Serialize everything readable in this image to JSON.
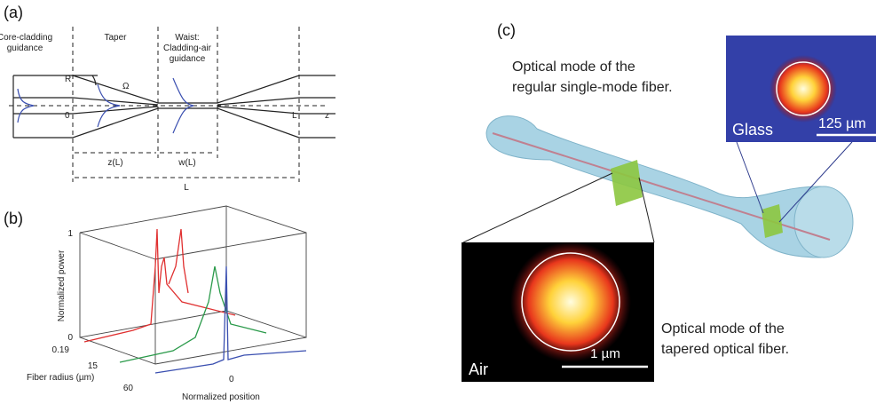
{
  "panel_a": {
    "label": "(a)",
    "core_region": [
      "Core-cladding",
      "guidance"
    ],
    "taper_region": "Taper",
    "waist_region": [
      "Waist:",
      "Cladding-air",
      "guidance"
    ],
    "radius_symbol": "R",
    "angle_symbol": "Ω",
    "origin": "0",
    "end_symbol": "L",
    "axis_symbol": "z",
    "taper_length": "z(L)",
    "waist_length": "w(L)",
    "total_length": "L"
  },
  "panel_b": {
    "label": "(b)",
    "power_ticks": [
      "1",
      "0"
    ],
    "power_axis": "Normalized power",
    "radius_ticks": [
      "0.19",
      "15",
      "60"
    ],
    "radius_axis": "Fiber radius (µm)",
    "position_tick": "0",
    "position_axis": "Normalized position"
  },
  "panel_c": {
    "label": "(c)",
    "fiber_caption": [
      "Optical mode of the",
      "regular single-mode fiber."
    ],
    "glass_label": "Glass",
    "glass_scale": "125 µm",
    "air_label": "Air",
    "air_scale": "1 µm",
    "taper_caption": [
      "Optical mode of the",
      "tapered optical fiber."
    ]
  }
}
